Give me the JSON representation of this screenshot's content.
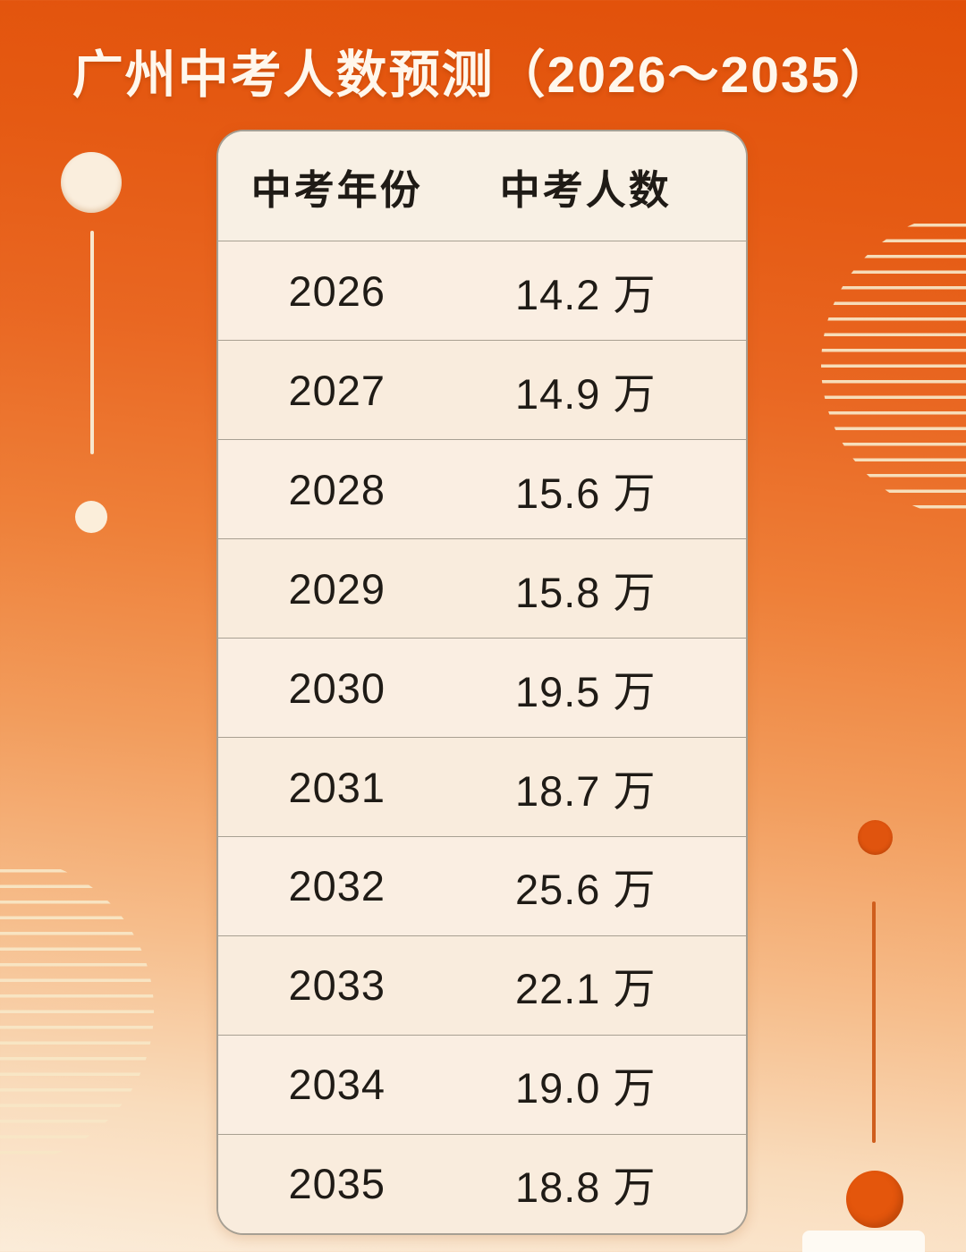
{
  "page": {
    "title": "广州中考人数预测（2026～2035）"
  },
  "table": {
    "headers": [
      "中考年份",
      "中考人数"
    ],
    "rows": [
      [
        "2026",
        "14.2 万"
      ],
      [
        "2027",
        "14.9 万"
      ],
      [
        "2028",
        "15.6 万"
      ],
      [
        "2029",
        "15.8 万"
      ],
      [
        "2030",
        "19.5 万"
      ],
      [
        "2031",
        "18.7 万"
      ],
      [
        "2032",
        "25.6 万"
      ],
      [
        "2033",
        "22.1 万"
      ],
      [
        "2034",
        "19.0 万"
      ],
      [
        "2035",
        "18.8 万"
      ]
    ]
  },
  "chart_data": {
    "type": "table",
    "title": "广州中考人数预测（2026～2035）",
    "columns": [
      "中考年份",
      "中考人数"
    ],
    "categories": [
      "2026",
      "2027",
      "2028",
      "2029",
      "2030",
      "2031",
      "2032",
      "2033",
      "2034",
      "2035"
    ],
    "values": [
      14.2,
      14.9,
      15.6,
      15.8,
      19.5,
      18.7,
      25.6,
      22.1,
      19.0,
      18.8
    ],
    "unit": "万"
  },
  "colors": {
    "background_top": "#e15009",
    "background_bottom": "#fbecd9",
    "card_background": "#f9efe2",
    "card_border": "#8a8478",
    "text": "#1f1b16",
    "title_text": "#fff7ec",
    "deco_cream": "#faeedd",
    "deco_dark_orange": "#e0540e"
  },
  "icons": {
    "decorations": [
      "circle-top-left",
      "vertical-line-left",
      "dot-left",
      "striped-half-circle-right",
      "striped-half-circle-bottom-left",
      "dot-right",
      "vertical-line-right",
      "circle-bottom-right",
      "tab-bottom-right"
    ]
  }
}
